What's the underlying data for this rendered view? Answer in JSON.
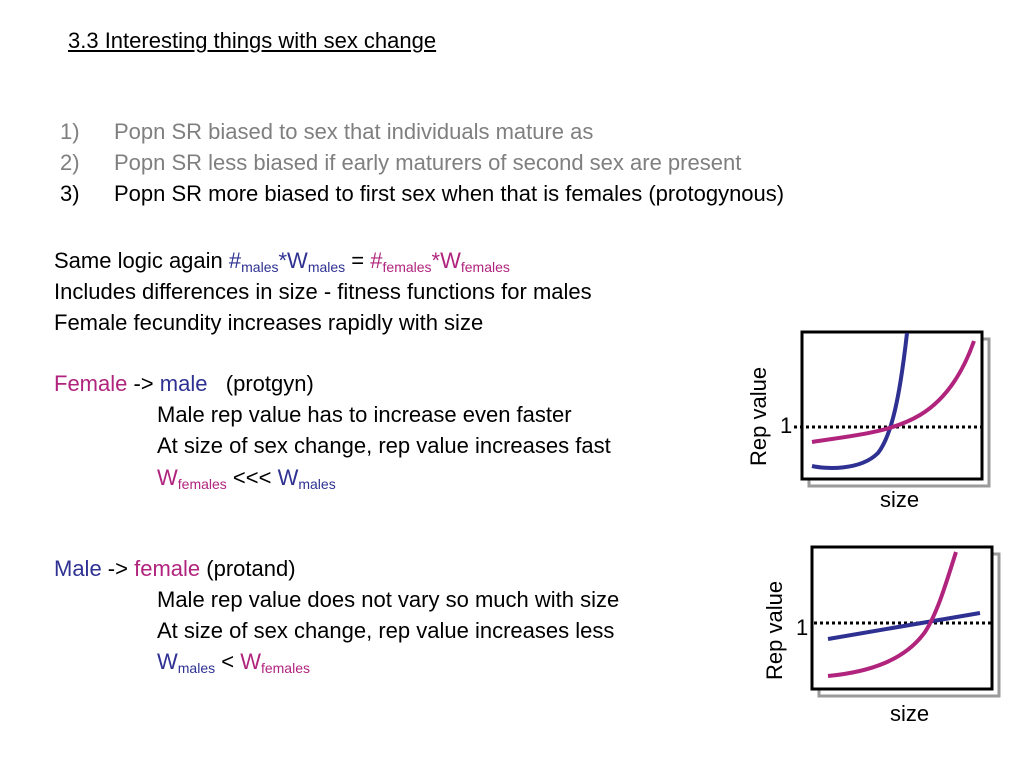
{
  "title": "3.3 Interesting things with sex change",
  "points": [
    {
      "num": "1)",
      "text": "Popn SR biased to sex that individuals mature as",
      "grey": true
    },
    {
      "num": "2)",
      "text": "Popn SR less biased if early maturers of second sex are present",
      "grey": true
    },
    {
      "num": "3)",
      "text": "Popn SR more biased to first sex when that is females (protogynous)",
      "grey": false
    }
  ],
  "logic": {
    "prefix": "Same logic again ",
    "hash1": "#",
    "sub_males": "males",
    "star_w1": "*W",
    "eq": " = ",
    "hash2": "#",
    "sub_females": "females",
    "star_w2": "*W",
    "line2": "Includes differences in size - fitness functions for males",
    "line3": "Female fecundity increases rapidly with size"
  },
  "protogyny": {
    "female": "Female",
    "arrow": " -> ",
    "male": "male",
    "label": "   (protgyn)",
    "line1": "Male rep value has to increase even faster",
    "line2": "At size of sex change, rep value increases fast",
    "w1": "W",
    "sub1": "females",
    "rel": " <<< ",
    "w2": "W",
    "sub2": "males"
  },
  "protandry": {
    "male": "Male",
    "arrow": " -> ",
    "female": "female",
    "label": " (protand)",
    "line1": "Male rep value does not vary so much with size",
    "line2": "At size of sex change, rep value increases less",
    "w1": "W",
    "sub1": "males",
    "rel": " < ",
    "w2": "W",
    "sub2": "females"
  },
  "graphs": {
    "ylabel": "Rep value",
    "xlabel": "size",
    "one": "1"
  },
  "colors": {
    "blue": "#2e3192",
    "magenta": "#b0247e",
    "grey": "#7f7f7f"
  }
}
